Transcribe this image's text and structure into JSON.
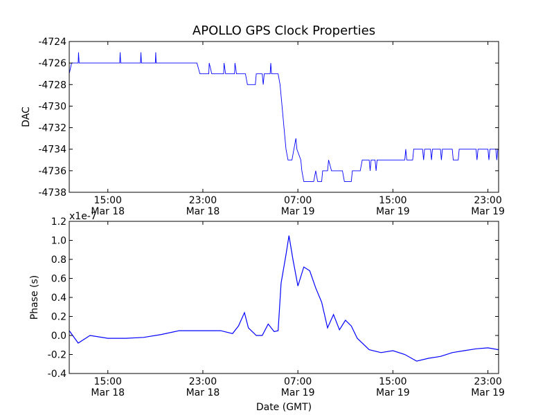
{
  "title": "APOLLO GPS Clock Properties",
  "chart_data": [
    {
      "type": "line",
      "ylabel": "DAC",
      "xlabel": "",
      "x_ticks": [
        {
          "time": "Mar 18 15:00",
          "label": "15:00\nMar 18"
        },
        {
          "time": "Mar 18 23:00",
          "label": "23:00\nMar 18"
        },
        {
          "time": "Mar 19 07:00",
          "label": "07:00\nMar 19"
        },
        {
          "time": "Mar 19 15:00",
          "label": "15:00\nMar 19"
        },
        {
          "time": "Mar 19 23:00",
          "label": "23:00\nMar 19"
        }
      ],
      "xlim": [
        "Mar 18 11:45",
        "Mar 19 23:54"
      ],
      "ylim": [
        -4738,
        -4724
      ],
      "yticks": [
        -4738,
        -4736,
        -4734,
        -4732,
        -4730,
        -4728,
        -4726,
        -4724
      ],
      "series": [
        {
          "color": "#0000ff",
          "points": [
            [
              "Mar 18 11:45",
              -4727
            ],
            [
              "Mar 18 11:57",
              -4726
            ],
            [
              "Mar 18 12:30",
              -4726
            ],
            [
              "Mar 18 12:32",
              -4725
            ],
            [
              "Mar 18 12:35",
              -4726
            ],
            [
              "Mar 18 16:00",
              -4726
            ],
            [
              "Mar 18 16:02",
              -4725
            ],
            [
              "Mar 18 16:05",
              -4726
            ],
            [
              "Mar 18 17:45",
              -4726
            ],
            [
              "Mar 18 17:47",
              -4725
            ],
            [
              "Mar 18 17:50",
              -4726
            ],
            [
              "Mar 18 19:00",
              -4726
            ],
            [
              "Mar 18 19:02",
              -4725
            ],
            [
              "Mar 18 19:04",
              -4726
            ],
            [
              "Mar 18 22:30",
              -4726
            ],
            [
              "Mar 18 22:45",
              -4727
            ],
            [
              "Mar 18 23:30",
              -4727
            ],
            [
              "Mar 18 23:32",
              -4726
            ],
            [
              "Mar 18 23:45",
              -4727
            ],
            [
              "Mar 19 00:45",
              -4727
            ],
            [
              "Mar 19 00:47",
              -4726
            ],
            [
              "Mar 19 00:55",
              -4727
            ],
            [
              "Mar 19 01:40",
              -4727
            ],
            [
              "Mar 19 01:42",
              -4726
            ],
            [
              "Mar 19 01:50",
              -4727
            ],
            [
              "Mar 19 02:35",
              -4727
            ],
            [
              "Mar 19 02:45",
              -4728
            ],
            [
              "Mar 19 03:25",
              -4728
            ],
            [
              "Mar 19 03:30",
              -4727
            ],
            [
              "Mar 19 04:00",
              -4727
            ],
            [
              "Mar 19 04:05",
              -4728
            ],
            [
              "Mar 19 04:10",
              -4727
            ],
            [
              "Mar 19 04:40",
              -4727
            ],
            [
              "Mar 19 04:43",
              -4726
            ],
            [
              "Mar 19 04:47",
              -4727
            ],
            [
              "Mar 19 05:00",
              -4727
            ],
            [
              "Mar 19 05:20",
              -4727
            ],
            [
              "Mar 19 05:30",
              -4728
            ],
            [
              "Mar 19 05:40",
              -4730
            ],
            [
              "Mar 19 05:50",
              -4732
            ],
            [
              "Mar 19 06:00",
              -4734
            ],
            [
              "Mar 19 06:10",
              -4735
            ],
            [
              "Mar 19 06:30",
              -4735
            ],
            [
              "Mar 19 06:40",
              -4734
            ],
            [
              "Mar 19 06:50",
              -4733
            ],
            [
              "Mar 19 06:55",
              -4734
            ],
            [
              "Mar 19 07:15",
              -4735
            ],
            [
              "Mar 19 07:20",
              -4736
            ],
            [
              "Mar 19 07:30",
              -4737
            ],
            [
              "Mar 19 08:20",
              -4737
            ],
            [
              "Mar 19 08:30",
              -4736
            ],
            [
              "Mar 19 08:40",
              -4737
            ],
            [
              "Mar 19 09:00",
              -4737
            ],
            [
              "Mar 19 09:05",
              -4736
            ],
            [
              "Mar 19 09:30",
              -4736
            ],
            [
              "Mar 19 09:35",
              -4735
            ],
            [
              "Mar 19 09:50",
              -4736
            ],
            [
              "Mar 19 10:45",
              -4736
            ],
            [
              "Mar 19 10:55",
              -4737
            ],
            [
              "Mar 19 11:30",
              -4737
            ],
            [
              "Mar 19 11:35",
              -4736
            ],
            [
              "Mar 19 12:15",
              -4736
            ],
            [
              "Mar 19 12:25",
              -4735
            ],
            [
              "Mar 19 13:00",
              -4735
            ],
            [
              "Mar 19 13:05",
              -4736
            ],
            [
              "Mar 19 13:10",
              -4735
            ],
            [
              "Mar 19 13:30",
              -4735
            ],
            [
              "Mar 19 13:35",
              -4736
            ],
            [
              "Mar 19 13:40",
              -4735
            ],
            [
              "Mar 19 16:00",
              -4735
            ],
            [
              "Mar 19 16:05",
              -4734
            ],
            [
              "Mar 19 16:10",
              -4735
            ],
            [
              "Mar 19 16:40",
              -4735
            ],
            [
              "Mar 19 16:45",
              -4734
            ],
            [
              "Mar 19 17:30",
              -4734
            ],
            [
              "Mar 19 17:35",
              -4735
            ],
            [
              "Mar 19 17:40",
              -4734
            ],
            [
              "Mar 19 18:10",
              -4734
            ],
            [
              "Mar 19 18:15",
              -4735
            ],
            [
              "Mar 19 18:20",
              -4734
            ],
            [
              "Mar 19 19:00",
              -4734
            ],
            [
              "Mar 19 19:05",
              -4735
            ],
            [
              "Mar 19 19:10",
              -4734
            ],
            [
              "Mar 19 20:00",
              -4734
            ],
            [
              "Mar 19 20:05",
              -4735
            ],
            [
              "Mar 19 20:30",
              -4735
            ],
            [
              "Mar 19 20:35",
              -4734
            ],
            [
              "Mar 19 22:00",
              -4734
            ],
            [
              "Mar 19 22:05",
              -4735
            ],
            [
              "Mar 19 22:10",
              -4734
            ],
            [
              "Mar 19 23:00",
              -4734
            ],
            [
              "Mar 19 23:05",
              -4735
            ],
            [
              "Mar 19 23:10",
              -4734
            ],
            [
              "Mar 19 23:40",
              -4734
            ],
            [
              "Mar 19 23:45",
              -4735
            ],
            [
              "Mar 19 23:50",
              -4734
            ],
            [
              "Mar 19 23:54",
              -4734
            ]
          ]
        }
      ]
    },
    {
      "type": "line",
      "ylabel": "Phase (s)",
      "xlabel": "Date (GMT)",
      "y_offset_label": "x1e-7",
      "x_ticks": [
        {
          "time": "Mar 18 15:00",
          "label": "15:00\nMar 18"
        },
        {
          "time": "Mar 18 23:00",
          "label": "23:00\nMar 18"
        },
        {
          "time": "Mar 19 07:00",
          "label": "07:00\nMar 19"
        },
        {
          "time": "Mar 19 15:00",
          "label": "15:00\nMar 19"
        },
        {
          "time": "Mar 19 23:00",
          "label": "23:00\nMar 19"
        }
      ],
      "xlim": [
        "Mar 18 11:45",
        "Mar 19 23:54"
      ],
      "ylim": [
        -0.4,
        1.2
      ],
      "yticks": [
        -0.4,
        -0.2,
        0.0,
        0.2,
        0.4,
        0.6,
        0.8,
        1.0,
        1.2
      ],
      "series": [
        {
          "color": "#0000ff",
          "points": [
            [
              "Mar 18 11:45",
              0.05
            ],
            [
              "Mar 18 12:30",
              -0.08
            ],
            [
              "Mar 18 13:30",
              0.0
            ],
            [
              "Mar 18 15:00",
              -0.03
            ],
            [
              "Mar 18 16:30",
              -0.03
            ],
            [
              "Mar 18 18:00",
              -0.02
            ],
            [
              "Mar 18 19:30",
              0.01
            ],
            [
              "Mar 18 21:00",
              0.05
            ],
            [
              "Mar 18 22:30",
              0.05
            ],
            [
              "Mar 18 23:30",
              0.05
            ],
            [
              "Mar 19 00:30",
              0.05
            ],
            [
              "Mar 19 01:30",
              0.02
            ],
            [
              "Mar 19 02:00",
              0.1
            ],
            [
              "Mar 19 02:30",
              0.24
            ],
            [
              "Mar 19 02:50",
              0.08
            ],
            [
              "Mar 19 03:30",
              0.0
            ],
            [
              "Mar 19 04:00",
              0.0
            ],
            [
              "Mar 19 04:30",
              0.12
            ],
            [
              "Mar 19 05:00",
              0.04
            ],
            [
              "Mar 19 05:20",
              0.05
            ],
            [
              "Mar 19 05:35",
              0.55
            ],
            [
              "Mar 19 06:00",
              0.85
            ],
            [
              "Mar 19 06:15",
              1.05
            ],
            [
              "Mar 19 06:35",
              0.8
            ],
            [
              "Mar 19 07:00",
              0.52
            ],
            [
              "Mar 19 07:30",
              0.72
            ],
            [
              "Mar 19 08:00",
              0.68
            ],
            [
              "Mar 19 08:30",
              0.5
            ],
            [
              "Mar 19 09:00",
              0.35
            ],
            [
              "Mar 19 09:30",
              0.08
            ],
            [
              "Mar 19 10:00",
              0.22
            ],
            [
              "Mar 19 10:30",
              0.06
            ],
            [
              "Mar 19 11:00",
              0.16
            ],
            [
              "Mar 19 11:30",
              0.1
            ],
            [
              "Mar 19 12:00",
              -0.03
            ],
            [
              "Mar 19 13:00",
              -0.15
            ],
            [
              "Mar 19 14:00",
              -0.18
            ],
            [
              "Mar 19 15:00",
              -0.16
            ],
            [
              "Mar 19 16:00",
              -0.2
            ],
            [
              "Mar 19 17:00",
              -0.27
            ],
            [
              "Mar 19 18:00",
              -0.24
            ],
            [
              "Mar 19 19:00",
              -0.22
            ],
            [
              "Mar 19 20:00",
              -0.18
            ],
            [
              "Mar 19 21:00",
              -0.16
            ],
            [
              "Mar 19 22:00",
              -0.14
            ],
            [
              "Mar 19 23:00",
              -0.13
            ],
            [
              "Mar 19 23:54",
              -0.15
            ]
          ]
        }
      ]
    }
  ]
}
